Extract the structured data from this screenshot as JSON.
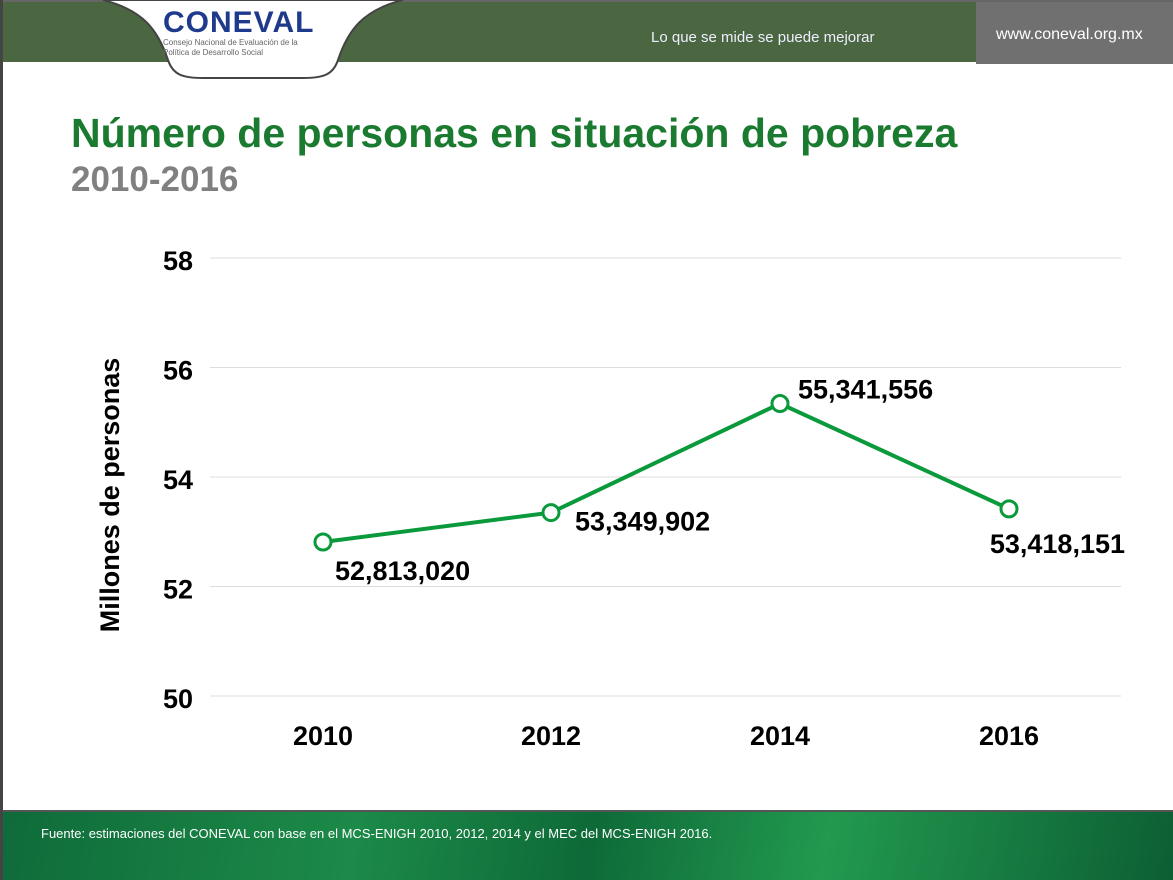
{
  "header": {
    "logo_text": "CONEVAL",
    "logo_subtitle": "Consejo Nacional de Evaluación de la Política de Desarrollo Social",
    "slogan": "Lo que se mide se puede mejorar",
    "url": "www.coneval.org.mx"
  },
  "title": "Número de personas en situación de pobreza",
  "subtitle": "2010-2016",
  "footer": {
    "source": "Fuente: estimaciones del CONEVAL con base en el MCS-ENIGH 2010, 2012, 2014 y el MEC del MCS-ENIGH 2016."
  },
  "colors": {
    "line": "#0a9a3c",
    "title": "#1a7a2f",
    "header": "#4a6741"
  },
  "chart_data": {
    "type": "line",
    "categories": [
      "2010",
      "2012",
      "2014",
      "2016"
    ],
    "values": [
      52.81302,
      53.349902,
      55.341556,
      53.418151
    ],
    "data_labels": [
      "52,813,020",
      "53,349,902",
      "55,341,556",
      "53,418,151"
    ],
    "ylabel": "Millones de personas",
    "ylim": [
      50,
      58
    ],
    "yticks": [
      "50",
      "52",
      "54",
      "56",
      "58"
    ],
    "grid": true
  }
}
